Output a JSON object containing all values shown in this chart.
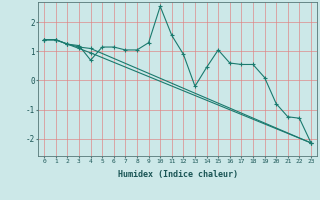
{
  "xlabel": "Humidex (Indice chaleur)",
  "background_color": "#cce8e8",
  "grid_color": "#e08080",
  "line_color": "#1a7a6e",
  "xlim": [
    -0.5,
    23.5
  ],
  "ylim": [
    -2.6,
    2.7
  ],
  "yticks": [
    -2,
    -1,
    0,
    1,
    2
  ],
  "xticks": [
    0,
    1,
    2,
    3,
    4,
    5,
    6,
    7,
    8,
    9,
    10,
    11,
    12,
    13,
    14,
    15,
    16,
    17,
    18,
    19,
    20,
    21,
    22,
    23
  ],
  "lines": [
    {
      "x": [
        0,
        1,
        2,
        3,
        4,
        5,
        6,
        7,
        8,
        9,
        10,
        11,
        12,
        13,
        14,
        15,
        16,
        17,
        18,
        19,
        20,
        21,
        22,
        23
      ],
      "y": [
        1.4,
        1.4,
        1.25,
        1.2,
        0.7,
        1.15,
        1.15,
        1.05,
        1.05,
        1.3,
        2.55,
        1.55,
        0.9,
        -0.2,
        0.45,
        1.05,
        0.6,
        0.55,
        0.55,
        0.1,
        -0.8,
        -1.25,
        -1.3,
        -2.15
      ]
    },
    {
      "x": [
        0,
        1,
        2,
        3,
        4,
        23
      ],
      "y": [
        1.4,
        1.4,
        1.25,
        1.15,
        1.1,
        -2.15
      ]
    },
    {
      "x": [
        0,
        1,
        2,
        3,
        4,
        23
      ],
      "y": [
        1.4,
        1.4,
        1.25,
        1.1,
        0.95,
        -2.15
      ]
    }
  ]
}
